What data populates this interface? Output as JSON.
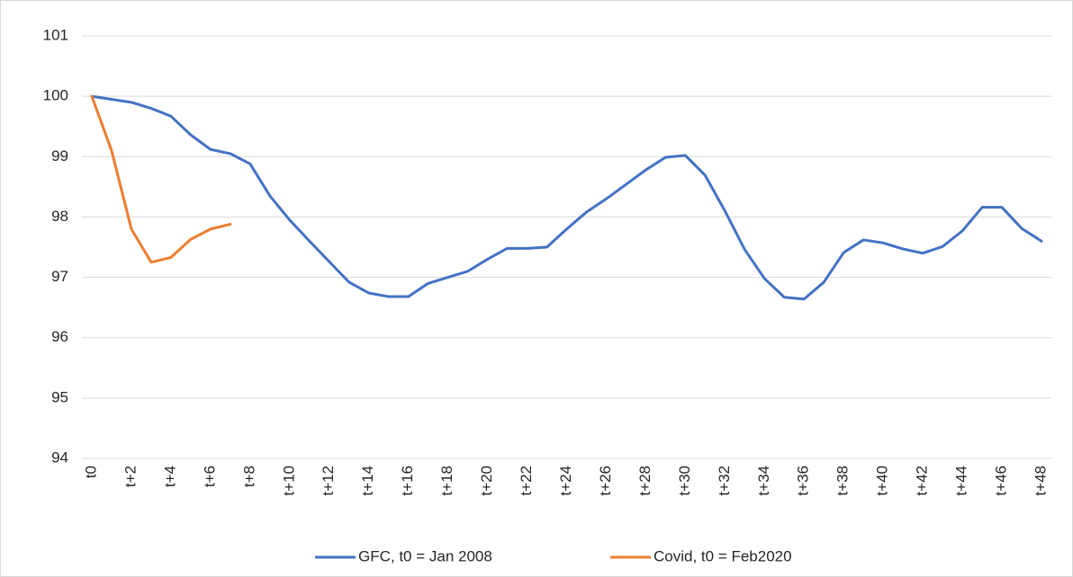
{
  "chart_data": {
    "type": "line",
    "categories": [
      "t0",
      null,
      "t+2",
      null,
      "t+4",
      null,
      "t+6",
      null,
      "t+8",
      null,
      "t+10",
      null,
      "t+12",
      null,
      "t+14",
      null,
      "t+16",
      null,
      "t+18",
      null,
      "t+20",
      null,
      "t+22",
      null,
      "t+24",
      null,
      "t+26",
      null,
      "t+28",
      null,
      "t+30",
      null,
      "t+32",
      null,
      "t+34",
      null,
      "t+36",
      null,
      "t+38",
      null,
      "t+40",
      null,
      "t+42",
      null,
      "t+44",
      null,
      "t+46",
      null,
      "t+48"
    ],
    "series": [
      {
        "name": "GFC, t0 = Jan 2008",
        "color": "#4472c4",
        "values": [
          100.0,
          99.95,
          99.9,
          99.8,
          99.67,
          99.36,
          99.12,
          99.05,
          98.88,
          98.35,
          97.95,
          97.6,
          97.26,
          96.92,
          96.74,
          96.68,
          96.68,
          96.9,
          97.0,
          97.1,
          97.3,
          97.48,
          97.48,
          97.5,
          97.8,
          98.08,
          98.3,
          98.54,
          98.78,
          98.99,
          99.02,
          98.69,
          98.1,
          97.46,
          96.98,
          96.67,
          96.64,
          96.92,
          97.41,
          97.62,
          97.57,
          97.47,
          97.4,
          97.51,
          97.77,
          98.16,
          98.16,
          97.81,
          97.6
        ]
      },
      {
        "name": "Covid, t0 = Feb2020",
        "color": "#ed7d31",
        "values": [
          100.0,
          99.1,
          97.8,
          97.25,
          97.33,
          97.63,
          97.8,
          97.88,
          null,
          null,
          null,
          null,
          null,
          null,
          null,
          null,
          null,
          null,
          null,
          null,
          null,
          null,
          null,
          null,
          null,
          null,
          null,
          null,
          null,
          null,
          null,
          null,
          null,
          null,
          null,
          null,
          null,
          null,
          null,
          null,
          null,
          null,
          null,
          null,
          null,
          null,
          null,
          null,
          null
        ]
      }
    ],
    "ylim": [
      94,
      101
    ],
    "yticks": [
      94,
      95,
      96,
      97,
      98,
      99,
      100,
      101
    ],
    "grid": true,
    "legend": "bottom"
  }
}
